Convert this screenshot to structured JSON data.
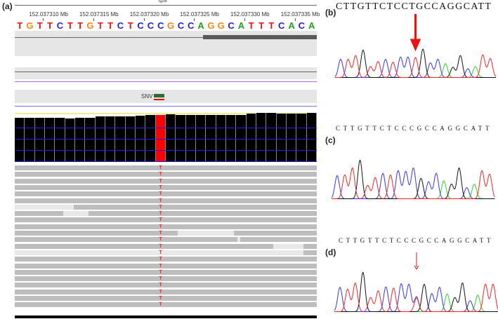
{
  "panels": {
    "a": "(a)",
    "b": "(b)",
    "c": "(c)",
    "d": "(d)"
  },
  "igv": {
    "cytoband": "q28",
    "ruler": [
      "152.037310 Mb",
      "152.037315 Mb",
      "152.037320 Mb",
      "152.037325 Mb",
      "152.037330 Mb",
      "152.037335 Mb"
    ],
    "reference": [
      "T",
      "G",
      "T",
      "T",
      "C",
      "T",
      "T",
      "G",
      "T",
      "T",
      "C",
      "T",
      "C",
      "C",
      "C",
      "G",
      "C",
      "C",
      "A",
      "G",
      "G",
      "C",
      "A",
      "T",
      "T",
      "T",
      "C",
      "A",
      "C",
      "A"
    ],
    "snv_label": "SNV",
    "variant_base": "T",
    "variant_index": 14,
    "coverage_relative": [
      0.93,
      0.93,
      0.93,
      0.93,
      0.93,
      0.91,
      0.93,
      0.93,
      0.95,
      0.95,
      0.95,
      0.95,
      0.97,
      0.99,
      0.99,
      1.0,
      0.99,
      0.99,
      0.99,
      0.99,
      0.99,
      0.99,
      0.99,
      1.02,
      1.03,
      1.03,
      1.02,
      1.01,
      1.01,
      1.03
    ],
    "read_count": 22,
    "colors": {
      "A": "#1aa51a",
      "C": "#1f1fe0",
      "G": "#f28a0f",
      "T": "#ee1111",
      "variant": "#ff0000",
      "coverage": "#000000"
    }
  },
  "chromatograms": [
    {
      "panel": "b",
      "sequence": "CTTGTTCTCCTGCCAGGCATT",
      "peaks": [
        0.5,
        0.5,
        0.6,
        0.75,
        0.3,
        0.44,
        0.5,
        0.42,
        0.56,
        0.56,
        0.55,
        0.78,
        0.4,
        0.5,
        0.38,
        0.28,
        0.6,
        0.24,
        0.3,
        0.62,
        0.52
      ],
      "arrow_index": 10
    },
    {
      "panel": "c",
      "sequence": "CTTGTTCTCCCGCCAGGCATT",
      "peaks": [
        0.6,
        0.62,
        0.8,
        1.0,
        0.35,
        0.55,
        0.66,
        0.62,
        0.73,
        0.71,
        0.8,
        0.53,
        0.44,
        0.66,
        0.47,
        0.38,
        0.8,
        0.29,
        0.38,
        0.73,
        0.64
      ]
    },
    {
      "panel": "d",
      "sequence": "CTTGTTCTCCCGCCAGGCATT",
      "peaks": [
        0.62,
        0.57,
        0.73,
        1.0,
        0.36,
        0.53,
        0.63,
        0.6,
        0.71,
        0.7,
        0.38,
        0.7,
        0.46,
        0.62,
        0.45,
        0.36,
        0.73,
        0.28,
        0.42,
        0.7,
        0.7
      ],
      "arrow_index": 10,
      "secondary": {
        "index": 10,
        "base": "T",
        "height": 0.35
      }
    }
  ],
  "trace_colors": {
    "A": "#22dd22",
    "C": "#3333ff",
    "G": "#111111",
    "T": "#ff2222"
  }
}
